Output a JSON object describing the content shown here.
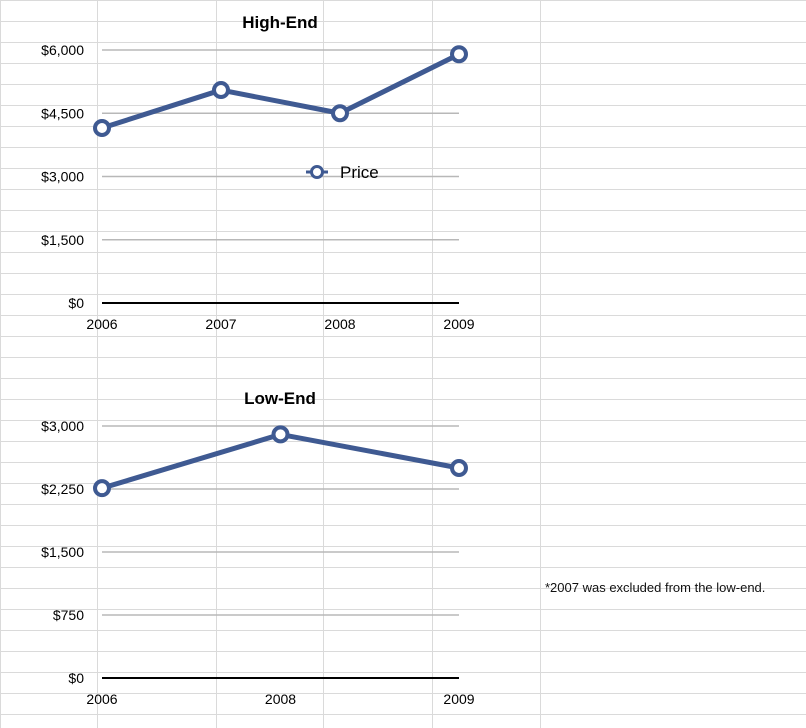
{
  "chart_data": [
    {
      "type": "line",
      "title": "High-End",
      "x": [
        "2006",
        "2007",
        "2008",
        "2009"
      ],
      "series": [
        {
          "name": "Price",
          "values": [
            4150,
            5050,
            4500,
            5900
          ],
          "color": "#3f5a92"
        }
      ],
      "yticks": [
        "$0",
        "$1,500",
        "$3,000",
        "$4,500",
        "$6,000"
      ],
      "ytick_values": [
        0,
        1500,
        3000,
        4500,
        6000
      ],
      "ylim": [
        0,
        6000
      ],
      "legend": "center",
      "grid": true
    },
    {
      "type": "line",
      "title": "Low-End",
      "x": [
        "2006",
        "2008",
        "2009"
      ],
      "series": [
        {
          "values": [
            2260,
            2900,
            2500
          ],
          "color": "#3f5a92"
        }
      ],
      "yticks": [
        "$0",
        "$750",
        "$1,500",
        "$2,250",
        "$3,000"
      ],
      "ytick_values": [
        0,
        750,
        1500,
        2250,
        3000
      ],
      "ylim": [
        0,
        3000
      ],
      "grid": true
    }
  ],
  "footnote": "*2007 was excluded from the low-end."
}
